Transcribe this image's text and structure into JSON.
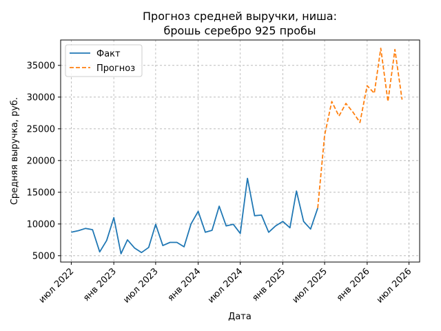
{
  "chart_data": {
    "type": "line",
    "title_lines": [
      "Прогноз средней выручки, ниша:",
      "брошь серебро 925 пробы"
    ],
    "xlabel": "Дата",
    "ylabel": "Средняя выручка, руб.",
    "xlim": [
      "2022-05-16",
      "2026-08-16"
    ],
    "ylim": [
      4000,
      39000
    ],
    "grid": true,
    "legend_position": "top-left",
    "x_ticks": [
      {
        "date": "2022-07-01",
        "label": "июл 2022"
      },
      {
        "date": "2023-01-01",
        "label": "янв 2023"
      },
      {
        "date": "2023-07-01",
        "label": "июл 2023"
      },
      {
        "date": "2024-01-01",
        "label": "янв 2024"
      },
      {
        "date": "2024-07-01",
        "label": "июл 2024"
      },
      {
        "date": "2025-01-01",
        "label": "янв 2025"
      },
      {
        "date": "2025-07-01",
        "label": "июл 2025"
      },
      {
        "date": "2026-01-01",
        "label": "янв 2026"
      },
      {
        "date": "2026-07-01",
        "label": "июл 2026"
      }
    ],
    "y_ticks": [
      5000,
      10000,
      15000,
      20000,
      25000,
      30000,
      35000
    ],
    "series": [
      {
        "name": "Факт",
        "color": "#1f77b4",
        "style": "solid",
        "points": [
          [
            "2022-07-01",
            8700
          ],
          [
            "2022-08-01",
            8950
          ],
          [
            "2022-09-01",
            9300
          ],
          [
            "2022-10-01",
            9100
          ],
          [
            "2022-11-01",
            5600
          ],
          [
            "2022-12-01",
            7400
          ],
          [
            "2023-01-01",
            11000
          ],
          [
            "2023-02-01",
            5300
          ],
          [
            "2023-03-01",
            7500
          ],
          [
            "2023-04-01",
            6200
          ],
          [
            "2023-05-01",
            5500
          ],
          [
            "2023-06-01",
            6300
          ],
          [
            "2023-07-01",
            9950
          ],
          [
            "2023-08-01",
            6600
          ],
          [
            "2023-09-01",
            7100
          ],
          [
            "2023-10-01",
            7100
          ],
          [
            "2023-11-01",
            6400
          ],
          [
            "2023-12-01",
            10000
          ],
          [
            "2024-01-01",
            12000
          ],
          [
            "2024-02-01",
            8700
          ],
          [
            "2024-03-01",
            9000
          ],
          [
            "2024-04-01",
            12800
          ],
          [
            "2024-05-01",
            9700
          ],
          [
            "2024-06-01",
            9950
          ],
          [
            "2024-07-01",
            8500
          ],
          [
            "2024-08-01",
            17200
          ],
          [
            "2024-09-01",
            11300
          ],
          [
            "2024-10-01",
            11400
          ],
          [
            "2024-11-01",
            8700
          ],
          [
            "2024-12-01",
            9700
          ],
          [
            "2025-01-01",
            10400
          ],
          [
            "2025-02-01",
            9400
          ],
          [
            "2025-03-01",
            15200
          ],
          [
            "2025-04-01",
            10400
          ],
          [
            "2025-05-01",
            9200
          ],
          [
            "2025-06-01",
            12500
          ]
        ]
      },
      {
        "name": "Прогноз",
        "color": "#ff7f0e",
        "style": "dashed",
        "points": [
          [
            "2025-06-01",
            12500
          ],
          [
            "2025-07-01",
            24000
          ],
          [
            "2025-08-01",
            29300
          ],
          [
            "2025-09-01",
            27000
          ],
          [
            "2025-10-01",
            29000
          ],
          [
            "2025-11-01",
            27600
          ],
          [
            "2025-12-01",
            26000
          ],
          [
            "2026-01-01",
            31800
          ],
          [
            "2026-02-01",
            30600
          ],
          [
            "2026-03-01",
            37700
          ],
          [
            "2026-04-01",
            29300
          ],
          [
            "2026-05-01",
            37500
          ],
          [
            "2026-06-01",
            29600
          ]
        ]
      }
    ]
  }
}
